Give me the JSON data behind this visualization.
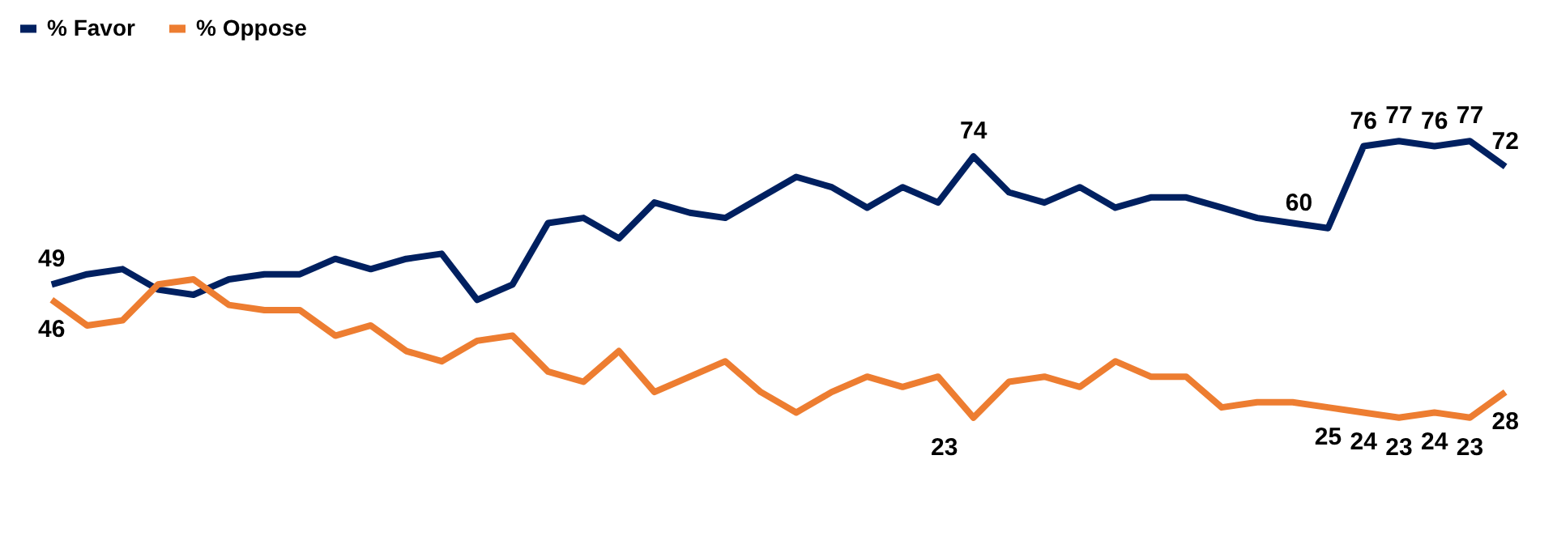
{
  "chart_data": {
    "type": "line",
    "categories": [
      null,
      null,
      null,
      null,
      null,
      null,
      null,
      null,
      null,
      null,
      null,
      null,
      null,
      null,
      null,
      null,
      null,
      null,
      null,
      null,
      null,
      null,
      null,
      null,
      null,
      null,
      null,
      null,
      null,
      null,
      null,
      null,
      null,
      null,
      null,
      null,
      null,
      null,
      null,
      null,
      null,
      null
    ],
    "series": [
      {
        "name": "% Favor",
        "color": "#002060",
        "values": [
          49,
          51,
          52,
          48,
          47,
          50,
          51,
          51,
          54,
          52,
          54,
          55,
          46,
          49,
          61,
          62,
          58,
          65,
          63,
          62,
          66,
          70,
          68,
          64,
          68,
          65,
          74,
          67,
          65,
          68,
          64,
          66,
          66,
          64,
          62,
          61,
          60,
          76,
          77,
          76,
          77,
          72
        ],
        "value_labels": [
          "49",
          null,
          null,
          null,
          null,
          null,
          null,
          null,
          null,
          null,
          null,
          null,
          null,
          null,
          null,
          null,
          null,
          null,
          null,
          null,
          null,
          null,
          null,
          null,
          null,
          null,
          "74",
          null,
          null,
          null,
          null,
          null,
          null,
          null,
          null,
          null,
          "60",
          "76",
          "77",
          "76",
          "77",
          "72"
        ]
      },
      {
        "name": "% Oppose",
        "color": "#ed7d31",
        "values": [
          46,
          41,
          42,
          49,
          50,
          45,
          44,
          44,
          39,
          41,
          36,
          34,
          38,
          39,
          32,
          30,
          36,
          28,
          31,
          34,
          28,
          24,
          28,
          31,
          29,
          31,
          23,
          30,
          31,
          29,
          34,
          31,
          31,
          25,
          26,
          26,
          25,
          24,
          23,
          24,
          23,
          28
        ],
        "value_labels": [
          "46",
          null,
          null,
          null,
          null,
          null,
          null,
          null,
          null,
          null,
          null,
          null,
          null,
          null,
          null,
          null,
          null,
          null,
          null,
          null,
          null,
          null,
          null,
          null,
          null,
          null,
          "23",
          null,
          null,
          null,
          null,
          null,
          null,
          null,
          null,
          null,
          "25",
          "24",
          "23",
          "24",
          "23",
          "28"
        ]
      }
    ],
    "legend": "top",
    "grid": false,
    "marker": "none",
    "line_style": "solid",
    "tick_labels": false
  }
}
